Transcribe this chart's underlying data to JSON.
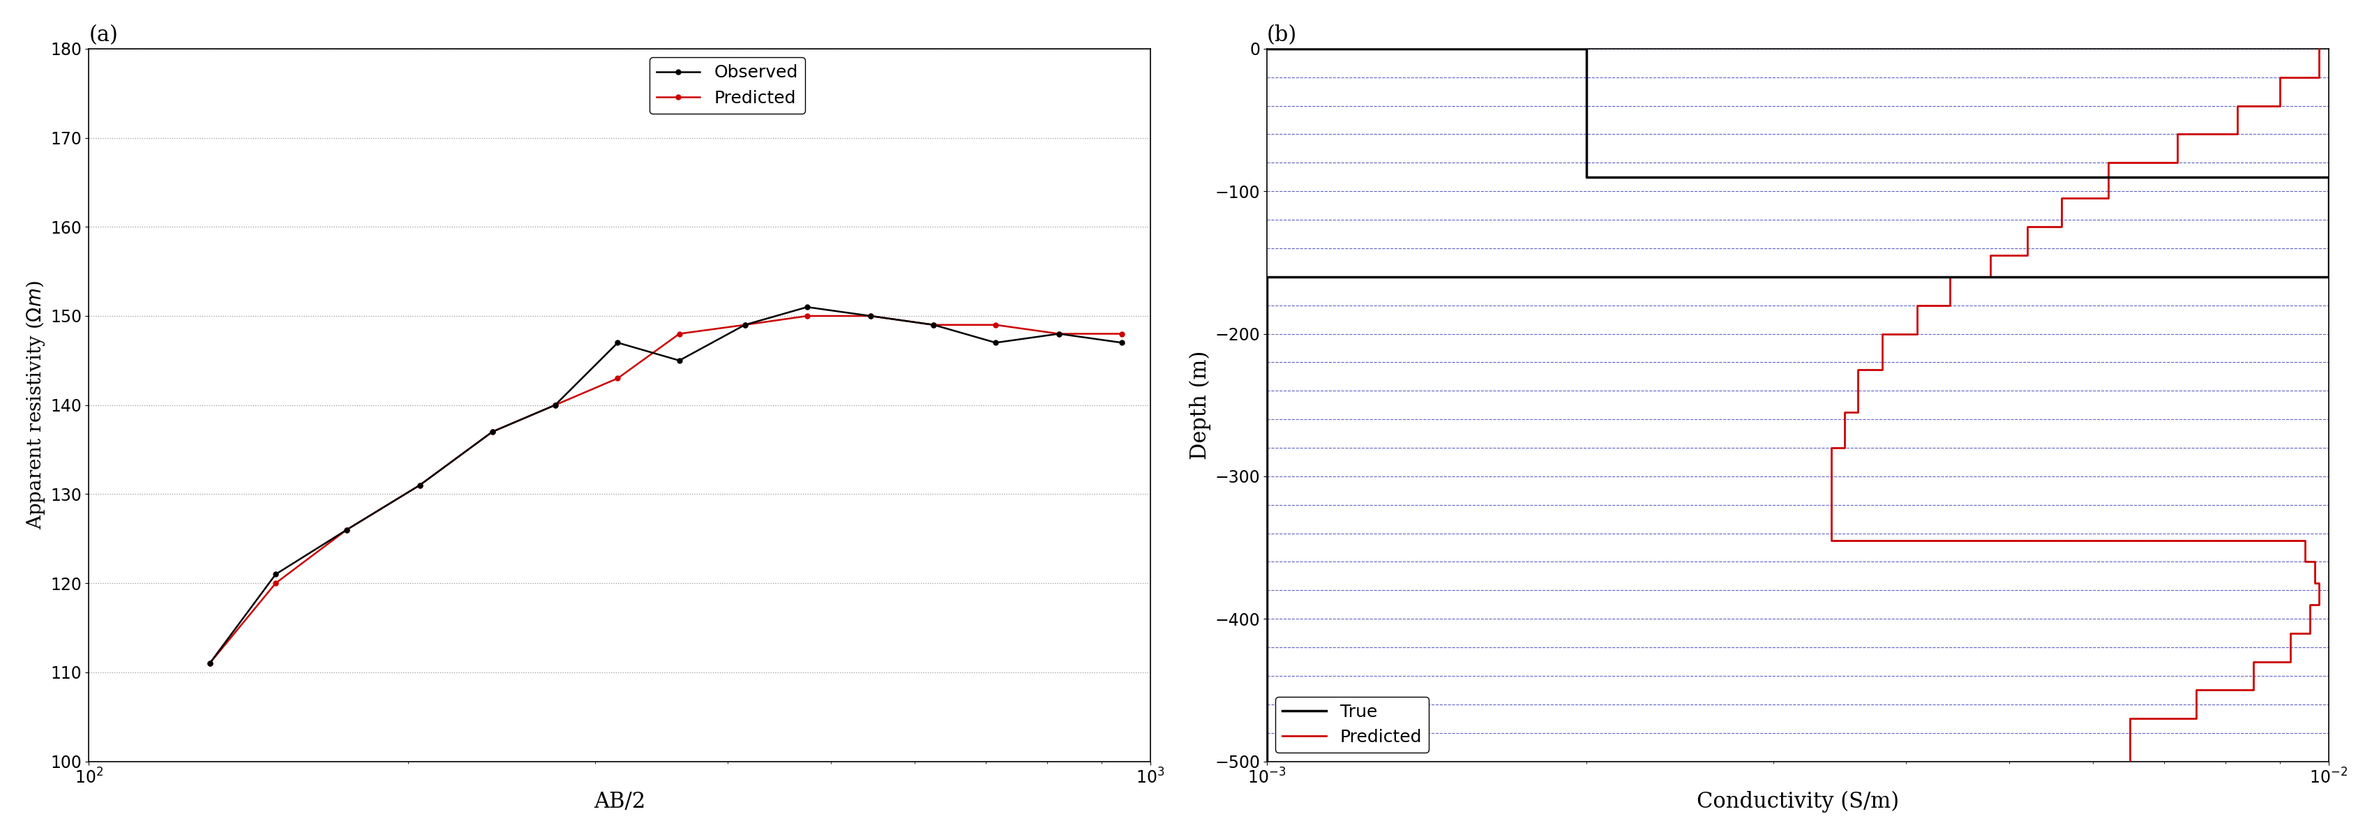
{
  "panel_a": {
    "title": "(a)",
    "xlabel": "AB/2",
    "ylabel": "Apparent resistivity ($\\Omega m$)",
    "xlim": [
      100,
      1000
    ],
    "ylim": [
      100,
      180
    ],
    "yticks": [
      100,
      110,
      120,
      130,
      140,
      150,
      160,
      170,
      180
    ],
    "observed_x": [
      130,
      150,
      175,
      205,
      240,
      275,
      315,
      360,
      415,
      475,
      545,
      625,
      715,
      820,
      940
    ],
    "observed_y": [
      111,
      121,
      126,
      131,
      137,
      140,
      147,
      145,
      149,
      151,
      150,
      149,
      147,
      148,
      147
    ],
    "predicted_x": [
      130,
      150,
      175,
      205,
      240,
      275,
      315,
      360,
      415,
      475,
      545,
      625,
      715,
      820,
      940
    ],
    "predicted_y": [
      111,
      120,
      126,
      131,
      137,
      140,
      143,
      148,
      149,
      150,
      150,
      149,
      149,
      148,
      148
    ],
    "obs_color": "#000000",
    "pred_color": "#cc0000",
    "grid_color": "#999999",
    "grid_style": "dotted"
  },
  "panel_b": {
    "title": "(b)",
    "xlabel": "Conductivity (S/m)",
    "ylabel": "Depth (m)",
    "xlim": [
      0.001,
      0.01
    ],
    "ylim": [
      -500,
      0
    ],
    "yticks": [
      0,
      -100,
      -200,
      -300,
      -400,
      -500
    ],
    "true_x": [
      0.001,
      0.002,
      0.002,
      0.01,
      0.01,
      0.001,
      0.001
    ],
    "true_y": [
      0,
      0,
      -90,
      -90,
      -160,
      -160,
      -500
    ],
    "pred_x": [
      0.0098,
      0.0098,
      0.009,
      0.009,
      0.0082,
      0.0082,
      0.0072,
      0.0072,
      0.0062,
      0.0062,
      0.0056,
      0.0056,
      0.0052,
      0.0052,
      0.0048,
      0.0048,
      0.0044,
      0.0044,
      0.0041,
      0.0041,
      0.0038,
      0.0038,
      0.0036,
      0.0036,
      0.0035,
      0.0035,
      0.0034,
      0.0034,
      0.0095,
      0.0095,
      0.0097,
      0.0097,
      0.0098,
      0.0098,
      0.0096,
      0.0096,
      0.0092,
      0.0092,
      0.0085,
      0.0085,
      0.0075,
      0.0075,
      0.0065,
      0.0065
    ],
    "pred_y": [
      0,
      -20,
      -20,
      -40,
      -40,
      -60,
      -60,
      -80,
      -80,
      -105,
      -105,
      -125,
      -125,
      -145,
      -145,
      -160,
      -160,
      -180,
      -180,
      -200,
      -200,
      -225,
      -225,
      -255,
      -255,
      -280,
      -280,
      -345,
      -345,
      -360,
      -360,
      -375,
      -375,
      -390,
      -390,
      -410,
      -410,
      -430,
      -430,
      -450,
      -450,
      -470,
      -470,
      -500
    ],
    "true_color": "#000000",
    "pred_color": "#cc0000",
    "grid_color": "#4444bb",
    "bg_color": "#d8d8f8"
  }
}
